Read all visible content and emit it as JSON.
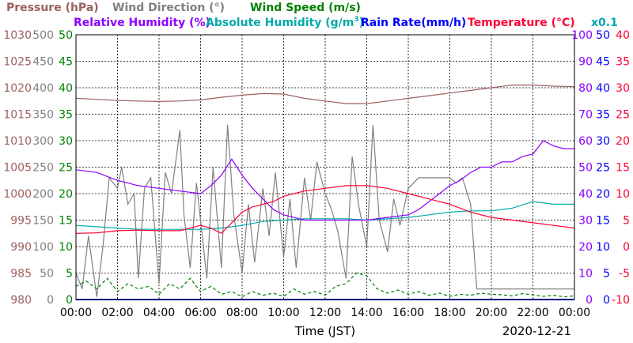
{
  "colors": {
    "pressure": "#9c5f5f",
    "wind_direction": "#808080",
    "wind_speed": "#008000",
    "relative_humidity": "#8b00ff",
    "absolute_humidity": "#00aaaa",
    "rain_rate": "#0000ff",
    "temperature": "#ff0033",
    "grid": "#000000",
    "text": "#000000"
  },
  "legend": {
    "pressure": "Pressure (hPa)",
    "wind_direction": "Wind Direction (°)",
    "wind_speed": "Wind Speed (m/s)",
    "relative_humidity": "Relative Humidity (%)",
    "absolute_humidity": "Absolute Humidity (g/m",
    "absolute_humidity_sup": "3",
    "absolute_humidity_close": ")",
    "rain_rate": "Rain Rate(mm/h)",
    "temperature": "Temperature (°C)",
    "rain_scale": "x0.1"
  },
  "chart_data": {
    "type": "line",
    "xlabel": "Time (JST)",
    "date": "2020-12-21",
    "x_ticks": [
      "00:00",
      "02:00",
      "04:00",
      "06:00",
      "08:00",
      "10:00",
      "12:00",
      "14:00",
      "16:00",
      "18:00",
      "20:00",
      "22:00",
      "00:00"
    ],
    "grid": true,
    "axes": {
      "pressure": {
        "ticks": [
          "1030",
          "1025",
          "1020",
          "1015",
          "1010",
          "1005",
          "1000",
          "995",
          "990",
          "985",
          "980"
        ],
        "range": [
          980,
          1030
        ]
      },
      "wind_speed": {
        "ticks": [
          "50",
          "45",
          "40",
          "35",
          "30",
          "25",
          "20",
          "15",
          "10",
          "5",
          "0"
        ],
        "range": [
          0,
          50
        ]
      },
      "wind_direction": {
        "ticks": [
          "500",
          "450",
          "400",
          "350",
          "300",
          "250",
          "200",
          "150",
          "100",
          "50",
          "0"
        ],
        "range": [
          0,
          500
        ]
      },
      "relative_humidity": {
        "ticks": [
          "100",
          "90",
          "80",
          "70",
          "60",
          "50",
          "40",
          "30",
          "20",
          "10",
          "0"
        ],
        "range": [
          0,
          100
        ]
      },
      "rain_rate": {
        "ticks": [
          "50",
          "45",
          "40",
          "35",
          "30",
          "25",
          "20",
          "15",
          "10",
          "5",
          "0"
        ],
        "range": [
          0,
          50
        ]
      },
      "temperature": {
        "ticks": [
          "40",
          "35",
          "30",
          "25",
          "20",
          "15",
          "10",
          "5",
          "0",
          "-5",
          "-10"
        ],
        "range": [
          -10,
          40
        ]
      }
    },
    "series": [
      {
        "name": "Pressure (hPa)",
        "axis": "pressure",
        "style": "solid",
        "x": [
          0,
          1,
          2,
          3,
          4,
          5,
          6,
          7,
          8,
          9,
          10,
          11,
          12,
          13,
          14,
          15,
          16,
          17,
          18,
          19,
          20,
          21,
          22,
          23,
          24
        ],
        "y": [
          1018.0,
          1017.8,
          1017.6,
          1017.5,
          1017.4,
          1017.5,
          1017.7,
          1018.2,
          1018.6,
          1018.9,
          1018.8,
          1018.0,
          1017.5,
          1017.0,
          1017.0,
          1017.5,
          1018.0,
          1018.5,
          1019.0,
          1019.5,
          1020.0,
          1020.5,
          1020.5,
          1020.3,
          1020.2
        ]
      },
      {
        "name": "Wind Direction (°)",
        "axis": "wind_direction",
        "style": "solid",
        "x": [
          0,
          0.3,
          0.6,
          1,
          1.3,
          1.6,
          2,
          2.2,
          2.5,
          2.8,
          3,
          3.3,
          3.6,
          4,
          4.3,
          4.6,
          5,
          5.2,
          5.5,
          5.8,
          6,
          6.3,
          6.6,
          7,
          7.3,
          7.6,
          8,
          8.3,
          8.6,
          9,
          9.3,
          9.6,
          10,
          10.3,
          10.6,
          11,
          11.3,
          11.6,
          12,
          12.3,
          12.6,
          13,
          13.3,
          13.6,
          14,
          14.3,
          14.6,
          15,
          15.3,
          15.6,
          16,
          16.5,
          17,
          17.5,
          18,
          18.3,
          18.6,
          19,
          19.3,
          19.6,
          20,
          20.5,
          21,
          21.5,
          22,
          22.3,
          22.6,
          23,
          23.5,
          24
        ],
        "y": [
          50,
          20,
          120,
          5,
          100,
          230,
          210,
          250,
          180,
          200,
          40,
          210,
          230,
          30,
          240,
          200,
          320,
          160,
          60,
          220,
          150,
          40,
          250,
          60,
          330,
          160,
          50,
          180,
          70,
          210,
          120,
          240,
          80,
          190,
          60,
          230,
          150,
          260,
          200,
          170,
          130,
          40,
          270,
          180,
          100,
          330,
          150,
          90,
          190,
          140,
          210,
          230,
          230,
          230,
          230,
          220,
          230,
          180,
          20,
          20,
          20,
          20,
          20,
          20,
          20,
          20,
          20,
          20,
          20,
          20
        ]
      },
      {
        "name": "Wind Speed (m/s)",
        "axis": "wind_speed",
        "style": "dashed",
        "x": [
          0,
          0.5,
          1,
          1.5,
          2,
          2.5,
          3,
          3.5,
          4,
          4.5,
          5,
          5.5,
          6,
          6.5,
          7,
          7.5,
          8,
          8.5,
          9,
          9.5,
          10,
          10.5,
          11,
          11.5,
          12,
          12.5,
          13,
          13.5,
          14,
          14.5,
          15,
          15.5,
          16,
          16.5,
          17,
          17.5,
          18,
          18.5,
          19,
          19.5,
          20,
          20.5,
          21,
          21.5,
          22,
          22.5,
          23,
          23.5,
          24
        ],
        "y": [
          2.5,
          3.5,
          2.0,
          4.0,
          1.5,
          3.0,
          2.0,
          2.5,
          1.0,
          3.0,
          2.0,
          4.0,
          1.5,
          2.5,
          1.0,
          1.5,
          0.5,
          1.5,
          0.8,
          1.2,
          0.6,
          2.0,
          1.0,
          1.5,
          0.8,
          2.5,
          3.0,
          5.0,
          4.5,
          2.0,
          1.2,
          1.8,
          1.0,
          1.5,
          0.8,
          1.2,
          0.6,
          1.0,
          0.8,
          1.2,
          1.0,
          0.9,
          0.7,
          1.1,
          0.9,
          0.6,
          0.8,
          0.5,
          0.7
        ]
      },
      {
        "name": "Relative Humidity (%)",
        "axis": "relative_humidity",
        "style": "solid",
        "x": [
          0,
          1,
          2,
          3,
          4,
          5,
          6,
          6.5,
          7,
          7.5,
          8,
          8.5,
          9,
          9.5,
          10,
          11,
          12,
          13,
          14,
          15,
          16,
          16.5,
          17,
          17.5,
          18,
          18.5,
          19,
          19.5,
          20,
          20.5,
          21,
          21.5,
          22,
          22.5,
          23,
          23.5,
          24
        ],
        "y": [
          49,
          48,
          45,
          43,
          42,
          41,
          40,
          43,
          47,
          53,
          47,
          42,
          38,
          34,
          32,
          30,
          30,
          30,
          30,
          31,
          32,
          34,
          37,
          40,
          43,
          45,
          48,
          50,
          50,
          52,
          52,
          54,
          55,
          60,
          58,
          57,
          57
        ]
      },
      {
        "name": "Absolute Humidity (g/m3)",
        "axis": "relative_humidity",
        "style": "solid",
        "x": [
          0,
          1,
          2,
          3,
          4,
          5,
          6,
          7,
          8,
          9,
          10,
          11,
          12,
          13,
          14,
          15,
          16,
          17,
          18,
          19,
          20,
          21,
          22,
          23,
          24
        ],
        "y": [
          28,
          27.5,
          27,
          26.5,
          26.5,
          26.5,
          26.5,
          27,
          28,
          29.5,
          30,
          30.5,
          30.5,
          30.5,
          30,
          30.5,
          31,
          32,
          33,
          33.5,
          33.5,
          34.5,
          37,
          36,
          36
        ]
      },
      {
        "name": "Temperature (°C)",
        "axis": "temperature",
        "style": "solid",
        "x": [
          0,
          1,
          2,
          3,
          4,
          5,
          6,
          6.5,
          7,
          7.5,
          8,
          8.5,
          9,
          9.5,
          10,
          11,
          12,
          13,
          14,
          15,
          16,
          17,
          18,
          19,
          20,
          21,
          22,
          23,
          24
        ],
        "y": [
          2.5,
          2.6,
          3.0,
          3.1,
          3.0,
          3.0,
          4.0,
          3.5,
          2.5,
          4.5,
          6.5,
          7.5,
          8.0,
          8.5,
          9.5,
          10.5,
          11.0,
          11.5,
          11.5,
          11.0,
          10.0,
          9.0,
          8.0,
          6.5,
          5.5,
          5.0,
          4.5,
          4.0,
          3.5
        ]
      },
      {
        "name": "Rain Rate(mm/h)",
        "axis": "rain_rate",
        "style": "solid",
        "x": [
          0,
          24
        ],
        "y": [
          0,
          0
        ]
      }
    ]
  }
}
